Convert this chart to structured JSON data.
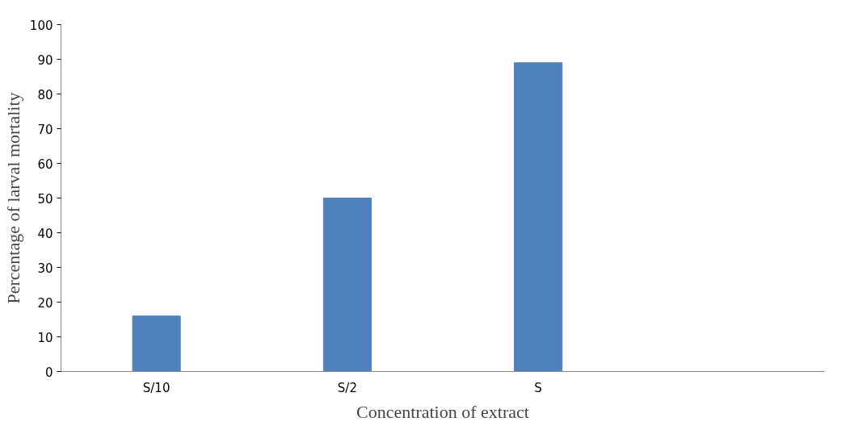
{
  "chart_data": {
    "type": "bar",
    "xlabel": "Concentration of extract",
    "ylabel": "Percentage of larval mortality",
    "categories": [
      "S/10",
      "S/2",
      "S",
      null
    ],
    "values": [
      16,
      50,
      89,
      null
    ],
    "color": "#4f81bd",
    "ylim": [
      0,
      100
    ],
    "yticks": [
      0,
      10,
      20,
      30,
      40,
      50,
      60,
      70,
      80,
      90,
      100
    ],
    "grid": false
  }
}
